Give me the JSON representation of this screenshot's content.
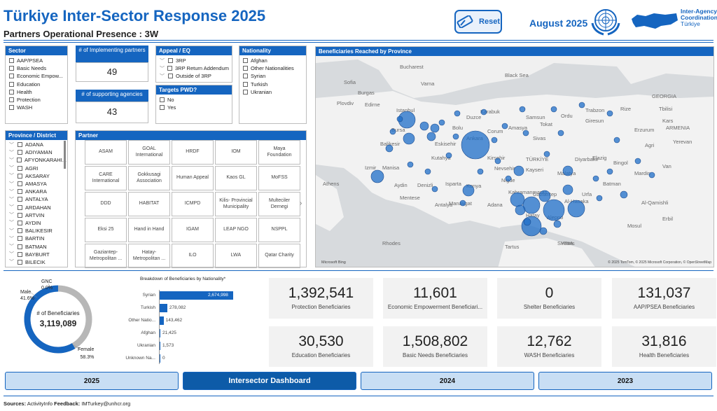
{
  "header": {
    "title": "Türkiye Inter-Sector Response 2025",
    "subtitle": "Partners Operational Presence : 3W",
    "reset_label": "Reset",
    "month": "August 2025",
    "iac_line1": "Inter-Agency",
    "iac_line2": "Coordination",
    "iac_line3": "Türkiye"
  },
  "sector": {
    "title": "Sector",
    "items": [
      "AAP/PSEA",
      "Basic Needs",
      "Economic Empow...",
      "Education",
      "Health",
      "Protection",
      "WASH"
    ]
  },
  "kpis": {
    "implementing_label": "# of Implementing partners",
    "implementing_value": "49",
    "supporting_label": "# of supporting agencies",
    "supporting_value": "43"
  },
  "appeal": {
    "title": "Appeal / EQ",
    "items": [
      "3RP",
      "3RP Return Addendum",
      "Outside of 3RP"
    ]
  },
  "pwd": {
    "title": "Targets PWD?",
    "items": [
      "No",
      "Yes"
    ]
  },
  "nationality": {
    "title": "Nationality",
    "items": [
      "Afghan",
      "Other Nationalities",
      "Syrian",
      "Turkish",
      "Ukranian"
    ]
  },
  "province": {
    "title": "Province / District",
    "items": [
      "ADANA",
      "ADIYAMAN",
      "AFYONKARAHI...",
      "AGRI",
      "AKSARAY",
      "AMASYA",
      "ANKARA",
      "ANTALYA",
      "ARDAHAN",
      "ARTVIN",
      "AYDIN",
      "BALIKESIR",
      "BARTIN",
      "BATMAN",
      "BAYBURT",
      "BILECIK"
    ]
  },
  "partner": {
    "title": "Partner",
    "items": [
      "ASAM",
      "GOAL International",
      "HRDF",
      "IOM",
      "Maya Foundation",
      "CARE International",
      "Gokkusagi Association",
      "Human Appeal",
      "Kaos GL",
      "MoFSS",
      "DDD",
      "HABITAT",
      "ICMPD",
      "Kilis- Provincial Municipality",
      "Multeciler Dernegi",
      "Eksi 25",
      "Hand in Hand",
      "IGAM",
      "LEAP NGO",
      "NSPPL",
      "Gaziantep-Metropolitan ...",
      "Hatay-Metropolitan ...",
      "ILO",
      "LWA",
      "Qatar Charity"
    ]
  },
  "map": {
    "title": "Beneficiaries Reached by Province",
    "attribution": "© 2025 TomTom, © 2025 Microsoft Corporation, © OpenStreetMap",
    "brand": "Microsoft Bing",
    "labels": [
      "Bucharest",
      "Varna",
      "Sofia",
      "Burgas",
      "Plovdiv",
      "Edirne",
      "Istanbul",
      "Bursa",
      "Balikesir",
      "Izmir",
      "Manisa",
      "Aydin",
      "Denizli",
      "Mentese",
      "Ankara",
      "Konya",
      "Kayseri",
      "Sivas",
      "Malatya",
      "Adana",
      "Aleppo",
      "Erzurum",
      "Trabzon",
      "Van",
      "Mosul",
      "Erbil",
      "SYRIA",
      "TÜRKİYE",
      "GEORGIA",
      "ARMENIA",
      "Tbilisi",
      "Yerevan",
      "Black Sea",
      "Athens",
      "Antalya",
      "Samsun",
      "Rhodes",
      "Al-Hasaka",
      "Al-Qamishli",
      "Batman",
      "Diyarbakir",
      "Bingol",
      "Mardin",
      "Homs",
      "Tartus",
      "Kutahya",
      "Eskisehir",
      "Duzce",
      "Karabuk",
      "Kirsehir",
      "Nevsehir",
      "Nigde",
      "Kahramanmaras",
      "Gaziantep",
      "Hatay",
      "Urfa",
      "Isparta",
      "Ordu",
      "Giresun",
      "Rize",
      "Bolu",
      "Corum",
      "Amasya",
      "Tokat",
      "Elazig",
      "Agri",
      "Kars",
      "Manavgat"
    ]
  },
  "donut": {
    "title": "# of Beneficiaries",
    "total": "3,119,089",
    "gnc_label": "GNC",
    "gnc_pct": "0.0%",
    "male_label": "Male",
    "male_pct": "41.6%",
    "female_label": "Female",
    "female_pct": "58.3%",
    "female_fraction": 0.583,
    "male_fraction": 0.416
  },
  "chart_data": {
    "type": "bar",
    "title": "Breakdown of Beneficiaries by Nationality*",
    "categories": [
      "Syrian",
      "Turkish",
      "Other Natio...",
      "Afghan",
      "Ukranian",
      "Unknown Na..."
    ],
    "values": [
      2674998,
      278082,
      143462,
      21425,
      1573,
      0
    ],
    "value_labels": [
      "2,674,998",
      "278,082",
      "143,462",
      "21,425",
      "1,573",
      "0"
    ]
  },
  "stats": [
    {
      "value": "1,392,541",
      "label": "Protection Beneficiaries"
    },
    {
      "value": "11,601",
      "label": "Economic Empowerment Beneficiari..."
    },
    {
      "value": "0",
      "label": "Shelter Beneficiaries"
    },
    {
      "value": "131,037",
      "label": "AAP/PSEA Beneficiaries"
    },
    {
      "value": "30,530",
      "label": "Education Beneficiaries"
    },
    {
      "value": "1,508,802",
      "label": "Basic Needs Beneficiaries"
    },
    {
      "value": "12,762",
      "label": "WASH Beneficiaries"
    },
    {
      "value": "31,816",
      "label": "Health Beneficiaries"
    }
  ],
  "tabs": [
    "2025",
    "Intersector Dashboard",
    "2024",
    "2023"
  ],
  "footer": {
    "sources_label": "Sources:",
    "sources_value": "ActivityInfo",
    "feedback_label": "Feedback:",
    "feedback_value": "IMTurkey@unhcr.org"
  },
  "colors": {
    "brand": "#1565c0",
    "donut_female": "#1565c0",
    "donut_male": "#b7b7b7"
  }
}
